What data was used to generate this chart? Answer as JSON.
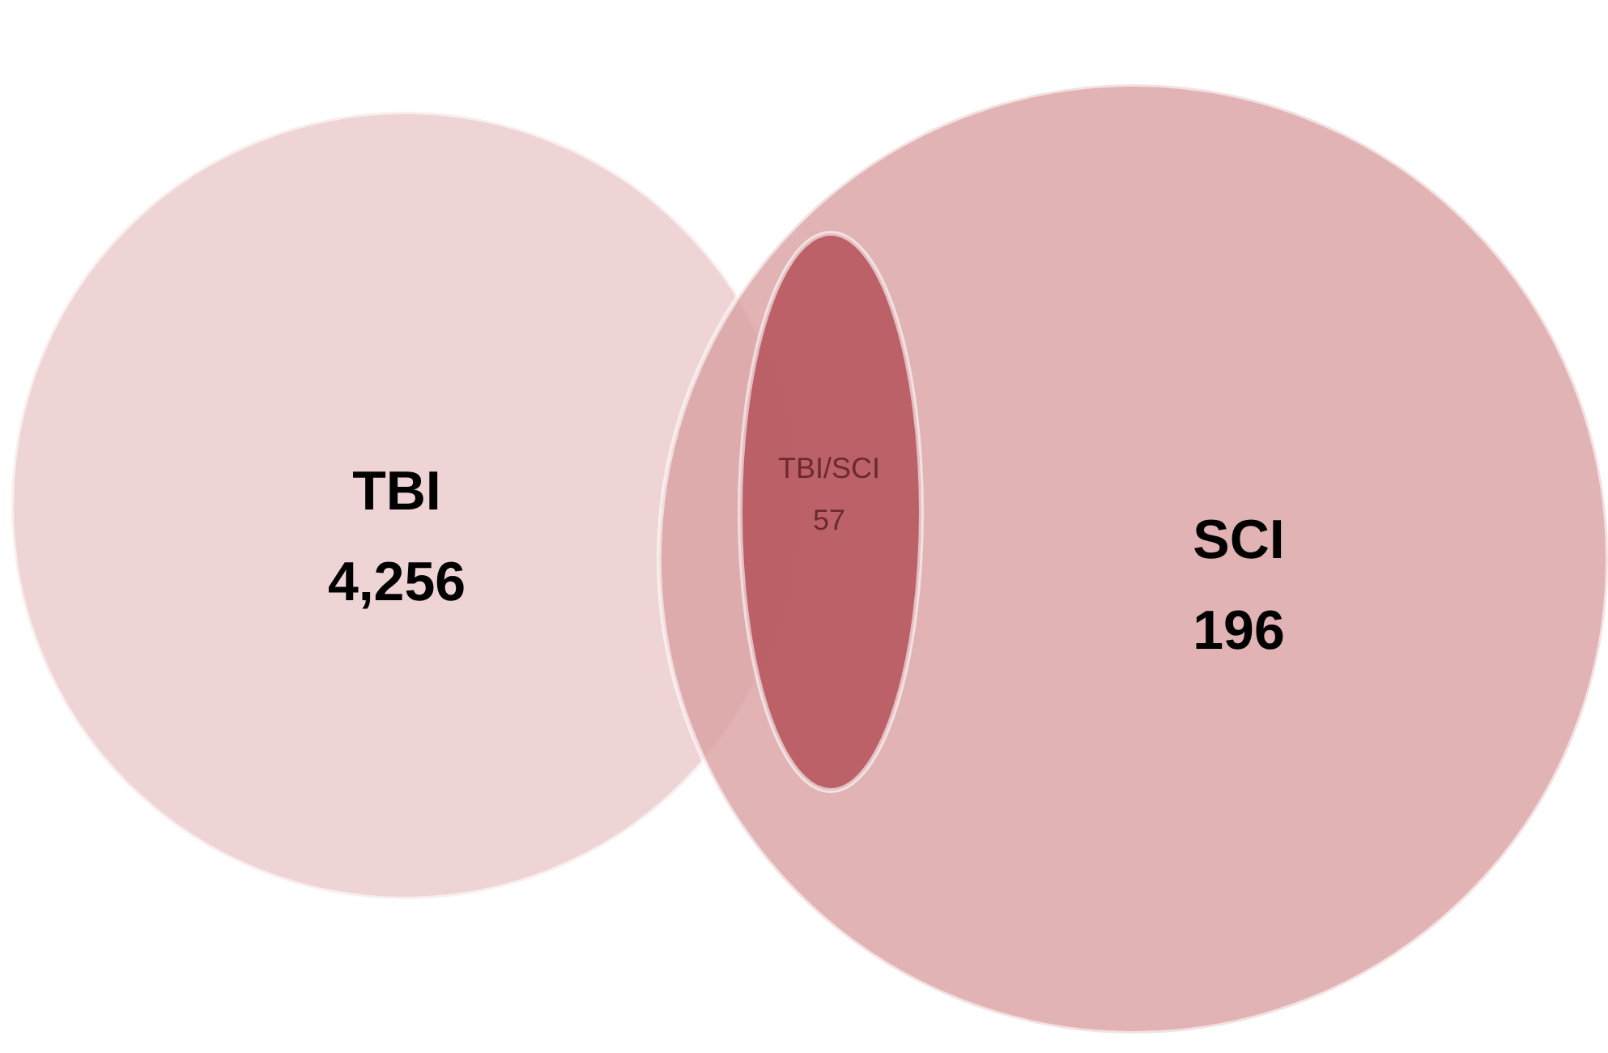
{
  "chart_data": {
    "type": "other",
    "categories": [
      "TBI",
      "SCI",
      "TBI/SCI"
    ],
    "values": [
      4256,
      196,
      57
    ],
    "value_labels": [
      "4,256",
      "196",
      "57"
    ],
    "colors": [
      "#ebc9cb",
      "#d9a0a3",
      "#b5525b"
    ]
  }
}
